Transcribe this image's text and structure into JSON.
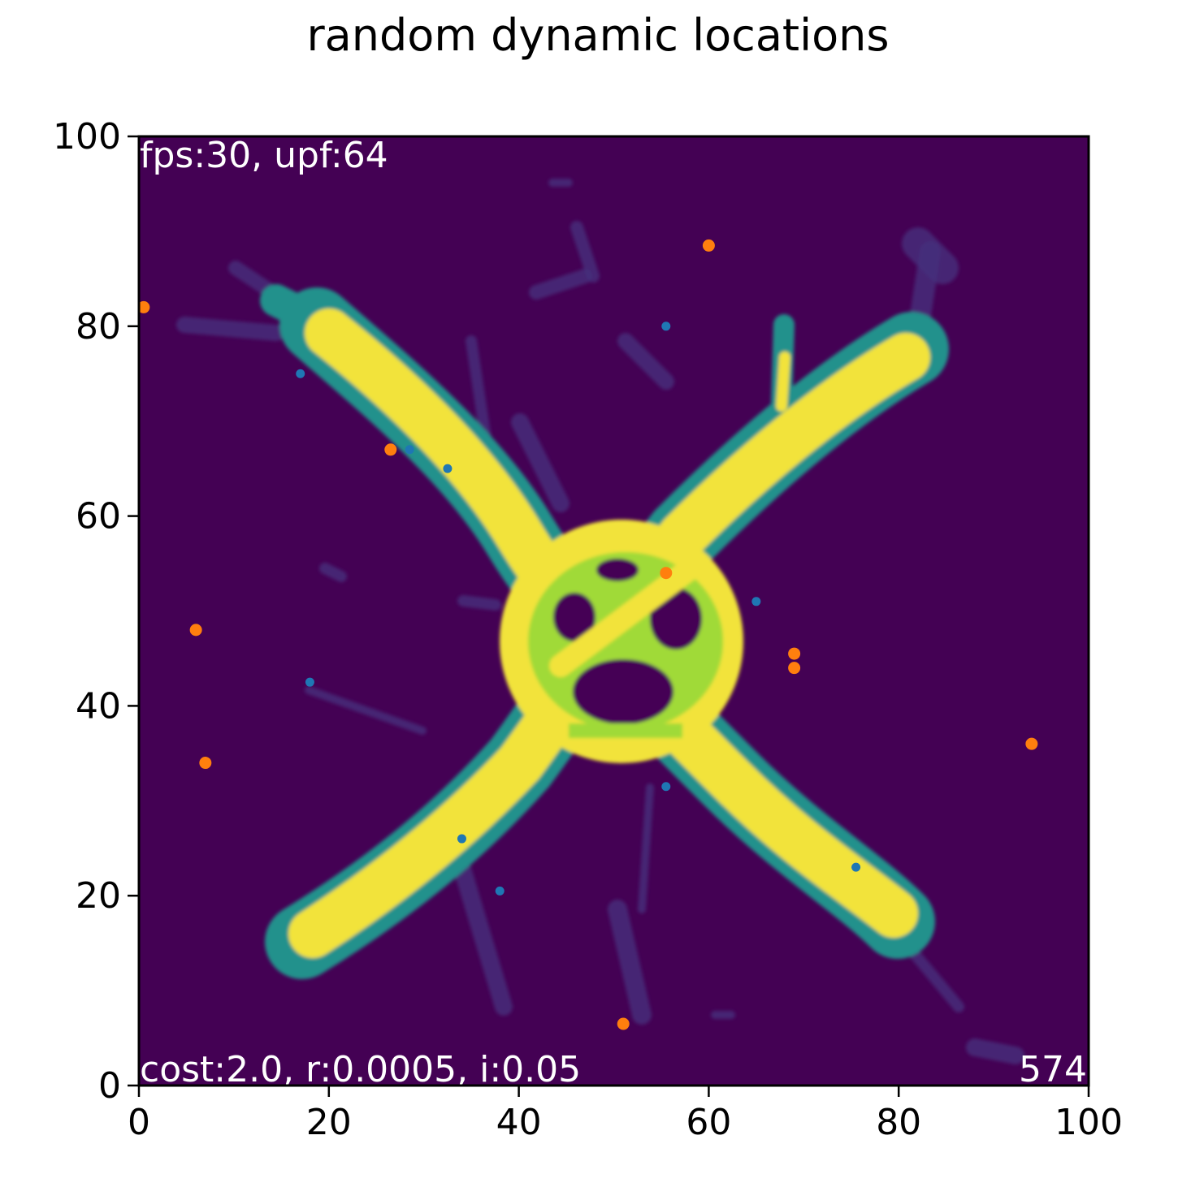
{
  "chart_data": {
    "type": "heatmap",
    "title": "random dynamic locations",
    "xlabel": "",
    "ylabel": "",
    "xlim": [
      0,
      100
    ],
    "ylim": [
      0,
      100
    ],
    "x_ticks": [
      0,
      20,
      40,
      60,
      80,
      100
    ],
    "y_ticks": [
      0,
      20,
      40,
      60,
      80,
      100
    ],
    "x_tick_labels": [
      "0",
      "20",
      "40",
      "60",
      "80",
      "100"
    ],
    "y_tick_labels": [
      "0",
      "20",
      "40",
      "60",
      "80",
      "100"
    ],
    "grid": false,
    "colormap": "viridis",
    "background_color": "#440154",
    "annotations": {
      "top_left": "fps:30, upf:64",
      "bottom_left": "cost:2.0, r:0.0005, i:0.05",
      "bottom_right": "574"
    },
    "heatmap_structure": {
      "description_values": "trail intensity strands (0 = background, 1 = max)",
      "strands": [
        {
          "from": [
            20,
            80
          ],
          "to": [
            80,
            17
          ],
          "intensity": 1.0
        },
        {
          "from": [
            18,
            15
          ],
          "to": [
            82,
            78
          ],
          "intensity": 1.0
        },
        {
          "from": [
            68,
            70
          ],
          "to": [
            68,
            80
          ],
          "intensity": 0.8
        },
        {
          "from": [
            10,
            84
          ],
          "to": [
            20,
            78
          ],
          "intensity": 0.35
        }
      ]
    },
    "series": [
      {
        "color": "#ff7f0e",
        "points": [
          [
            0.5,
            82
          ],
          [
            60,
            88.5
          ],
          [
            26.5,
            67
          ],
          [
            55.5,
            54
          ],
          [
            6,
            48
          ],
          [
            69,
            45.5
          ],
          [
            69,
            44
          ],
          [
            7,
            34
          ],
          [
            94,
            36
          ],
          [
            51,
            6.5
          ]
        ]
      },
      {
        "color": "#1f77b4",
        "points": [
          [
            17,
            75
          ],
          [
            55.5,
            80
          ],
          [
            28.5,
            67
          ],
          [
            32.5,
            65
          ],
          [
            65,
            51
          ],
          [
            18,
            42.5
          ],
          [
            55.5,
            31.5
          ],
          [
            34,
            26
          ],
          [
            38,
            20.5
          ],
          [
            75.5,
            23
          ]
        ]
      }
    ]
  }
}
